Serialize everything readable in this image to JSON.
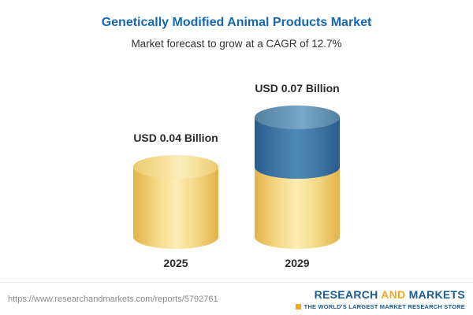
{
  "chart_data": {
    "type": "bar",
    "style": "3d-cylinder",
    "title": "Genetically Modified Animal Products Market",
    "subtitle": "Market forecast to grow at a CAGR of 12.7%",
    "cagr_percent": 12.7,
    "unit": "USD Billion",
    "categories": [
      "2025",
      "2029"
    ],
    "values": [
      0.04,
      0.07
    ],
    "value_labels": [
      "USD 0.04 Billion",
      "USD 0.07 Billion"
    ],
    "series": [
      {
        "name": "base",
        "color": "#f2cd69",
        "values": [
          0.04,
          0.04
        ]
      },
      {
        "name": "growth",
        "color": "#3a71a0",
        "values": [
          0,
          0.03
        ]
      }
    ],
    "legend": "none",
    "grid": false
  },
  "footer": {
    "url": "https://www.researchandmarkets.com/reports/5792761",
    "logo": {
      "part1": "RESEARCH",
      "part2": "AND",
      "part3": "MARKETS",
      "tagline": "THE WORLD'S LARGEST MARKET RESEARCH STORE"
    }
  },
  "colors": {
    "title_blue": "#1569b3",
    "bar_yellow": "#f2cd69",
    "bar_blue": "#3a71a0",
    "logo_blue": "#1a5a96",
    "logo_orange": "#f5a81c",
    "text_dark": "#2b2b2b",
    "url_gray": "#8a8a8a"
  }
}
